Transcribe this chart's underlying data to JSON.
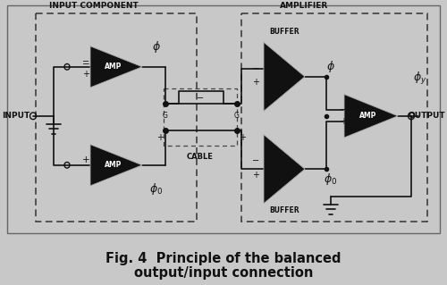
{
  "bg_color": "#c8c8c8",
  "diagram_bg": "#d8d8d8",
  "outer_border_color": "#555555",
  "dash_color": "#222222",
  "title_line1": "Fig. 4  Principle of the balanced",
  "title_line2": "output/input connection",
  "title_fontsize": 10.5,
  "label_input_component": "INPUT COMPONENT",
  "label_amplifier": "AMPLIFIER",
  "label_cable": "CABLE",
  "label_buffer_top": "BUFFER",
  "label_buffer_bot": "BUFFER",
  "label_input": "INPUT",
  "label_output": "OUTPUT",
  "text_color": "#111111",
  "line_color": "#111111"
}
